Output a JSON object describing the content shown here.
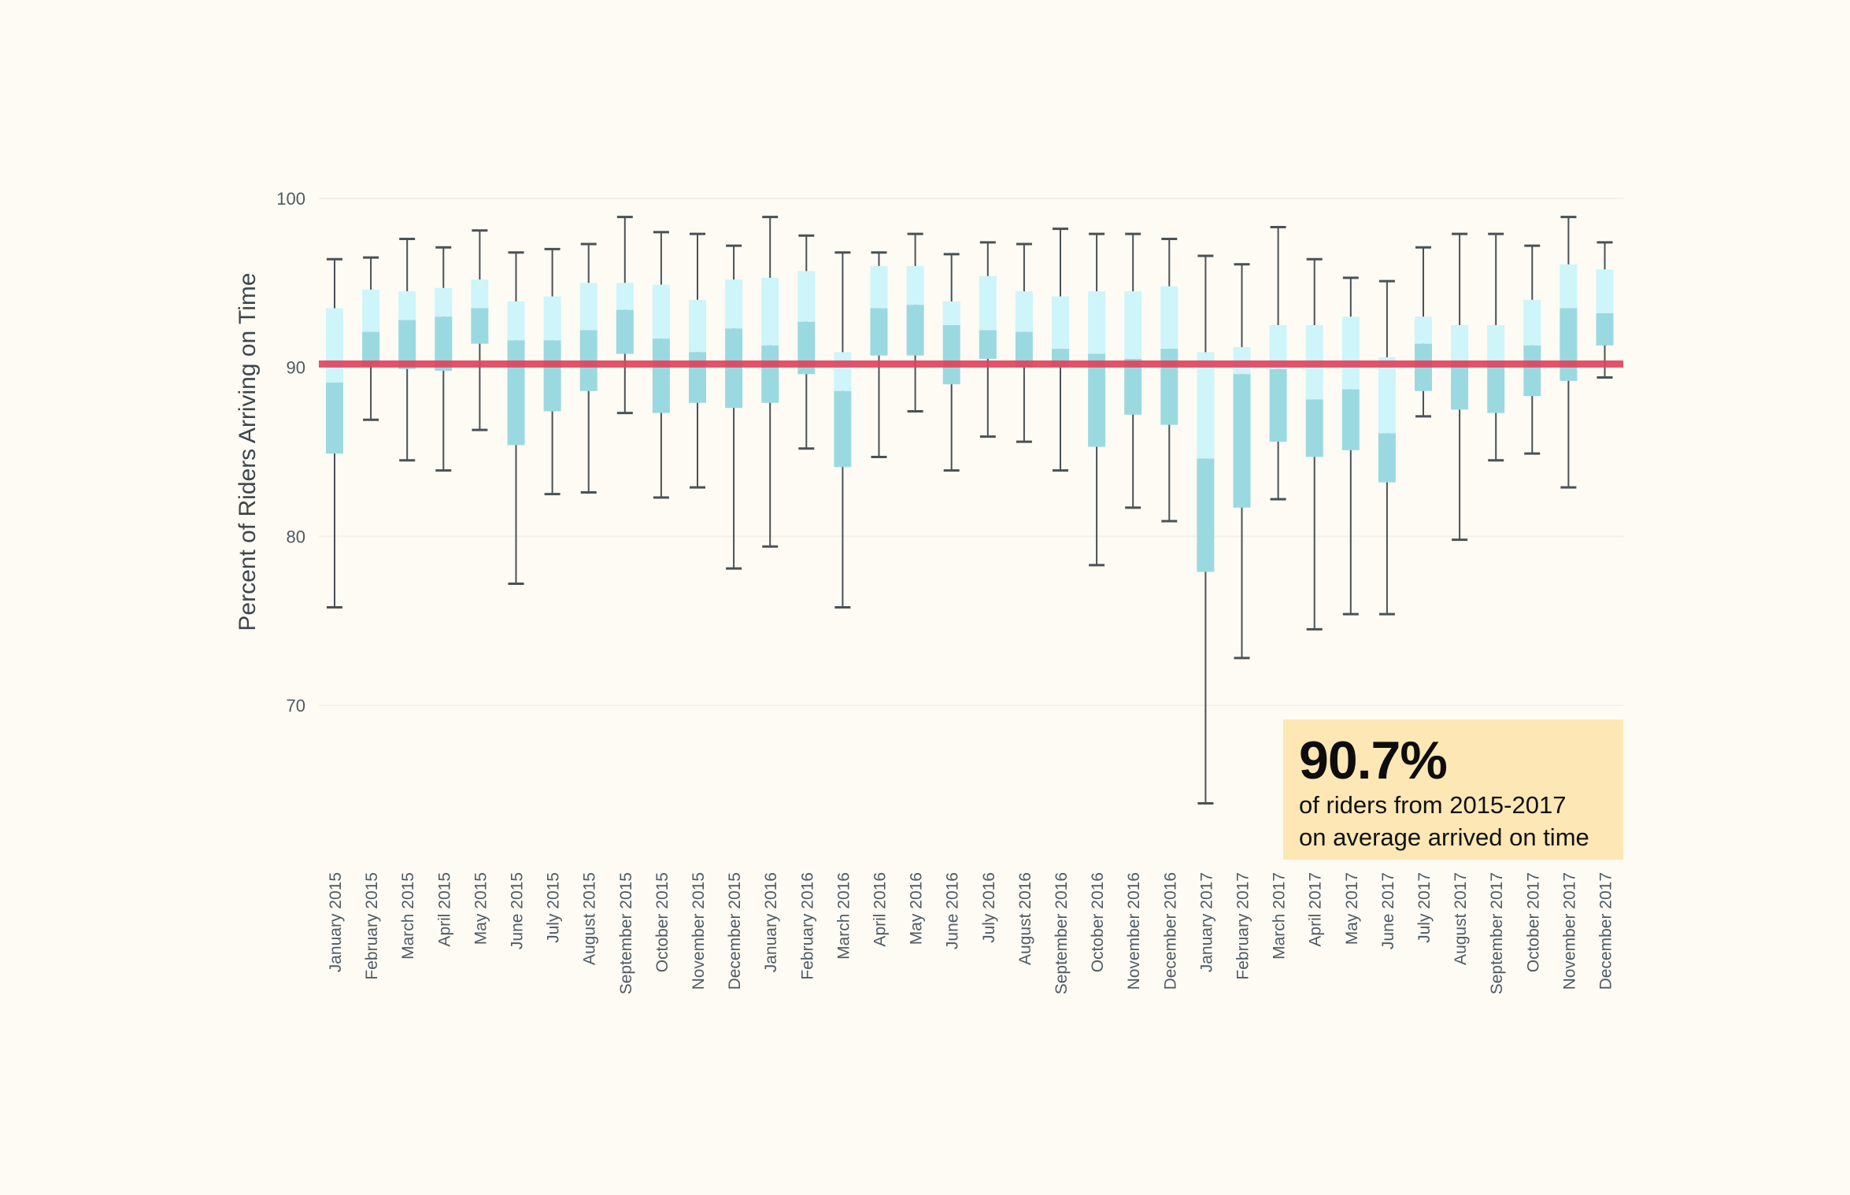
{
  "chart_data": {
    "type": "box",
    "ylabel": "Percent of Riders Arriving on Time",
    "ylim": [
      61.5,
      101
    ],
    "yticks": [
      70,
      80,
      90,
      100
    ],
    "grid": true,
    "categories": [
      "January 2015",
      "February 2015",
      "March 2015",
      "April 2015",
      "May 2015",
      "June 2015",
      "July 2015",
      "August 2015",
      "September 2015",
      "October 2015",
      "November 2015",
      "December 2015",
      "January 2016",
      "February 2016",
      "March 2016",
      "April 2016",
      "May 2016",
      "June 2016",
      "July 2016",
      "August 2016",
      "September 2016",
      "October 2016",
      "November 2016",
      "December 2016",
      "January 2017",
      "February 2017",
      "March 2017",
      "April 2017",
      "May 2017",
      "June 2017",
      "July 2017",
      "August 2017",
      "September 2017",
      "October 2017",
      "November 2017",
      "December 2017"
    ],
    "boxes": [
      {
        "min": 75.8,
        "q1": 84.9,
        "median": 89.1,
        "q3": 93.5,
        "max": 96.4
      },
      {
        "min": 86.9,
        "q1": 90.1,
        "median": 92.1,
        "q3": 94.6,
        "max": 96.5
      },
      {
        "min": 84.5,
        "q1": 89.9,
        "median": 92.8,
        "q3": 94.5,
        "max": 97.6
      },
      {
        "min": 83.9,
        "q1": 89.8,
        "median": 93.0,
        "q3": 94.7,
        "max": 97.1
      },
      {
        "min": 86.3,
        "q1": 91.4,
        "median": 93.5,
        "q3": 95.2,
        "max": 98.1
      },
      {
        "min": 77.2,
        "q1": 85.4,
        "median": 91.6,
        "q3": 93.9,
        "max": 96.8
      },
      {
        "min": 82.5,
        "q1": 87.4,
        "median": 91.6,
        "q3": 94.2,
        "max": 97.0
      },
      {
        "min": 82.6,
        "q1": 88.6,
        "median": 92.2,
        "q3": 95.0,
        "max": 97.3
      },
      {
        "min": 87.3,
        "q1": 90.8,
        "median": 93.4,
        "q3": 95.0,
        "max": 98.9
      },
      {
        "min": 82.3,
        "q1": 87.3,
        "median": 91.7,
        "q3": 94.9,
        "max": 98.0
      },
      {
        "min": 82.9,
        "q1": 87.9,
        "median": 90.9,
        "q3": 94.0,
        "max": 97.9
      },
      {
        "min": 78.1,
        "q1": 87.6,
        "median": 92.3,
        "q3": 95.2,
        "max": 97.2
      },
      {
        "min": 79.4,
        "q1": 87.9,
        "median": 91.3,
        "q3": 95.3,
        "max": 98.9
      },
      {
        "min": 85.2,
        "q1": 89.6,
        "median": 92.7,
        "q3": 95.7,
        "max": 97.8
      },
      {
        "min": 75.8,
        "q1": 84.1,
        "median": 88.6,
        "q3": 90.9,
        "max": 96.8
      },
      {
        "min": 84.7,
        "q1": 90.7,
        "median": 93.5,
        "q3": 96.0,
        "max": 96.8
      },
      {
        "min": 87.4,
        "q1": 90.7,
        "median": 93.7,
        "q3": 96.0,
        "max": 97.9
      },
      {
        "min": 83.9,
        "q1": 89.0,
        "median": 92.5,
        "q3": 93.9,
        "max": 96.7
      },
      {
        "min": 85.9,
        "q1": 90.5,
        "median": 92.2,
        "q3": 95.4,
        "max": 97.4
      },
      {
        "min": 85.6,
        "q1": 90.0,
        "median": 92.1,
        "q3": 94.5,
        "max": 97.3
      },
      {
        "min": 83.9,
        "q1": 90.0,
        "median": 91.1,
        "q3": 94.2,
        "max": 98.2
      },
      {
        "min": 78.3,
        "q1": 85.3,
        "median": 90.8,
        "q3": 94.5,
        "max": 97.9
      },
      {
        "min": 81.7,
        "q1": 87.2,
        "median": 90.5,
        "q3": 94.5,
        "max": 97.9
      },
      {
        "min": 80.9,
        "q1": 86.6,
        "median": 91.1,
        "q3": 94.8,
        "max": 97.6
      },
      {
        "min": 64.2,
        "q1": 77.9,
        "median": 84.6,
        "q3": 90.9,
        "max": 96.6
      },
      {
        "min": 72.8,
        "q1": 81.7,
        "median": 89.6,
        "q3": 91.2,
        "max": 96.1
      },
      {
        "min": 82.2,
        "q1": 85.6,
        "median": 89.9,
        "q3": 92.5,
        "max": 98.3
      },
      {
        "min": 74.5,
        "q1": 84.7,
        "median": 88.1,
        "q3": 92.5,
        "max": 96.4
      },
      {
        "min": 75.4,
        "q1": 85.1,
        "median": 88.7,
        "q3": 93.0,
        "max": 95.3
      },
      {
        "min": 75.4,
        "q1": 83.2,
        "median": 86.1,
        "q3": 90.6,
        "max": 95.1
      },
      {
        "min": 87.1,
        "q1": 88.6,
        "median": 91.4,
        "q3": 93.0,
        "max": 97.1
      },
      {
        "min": 79.8,
        "q1": 87.5,
        "median": 90.4,
        "q3": 92.5,
        "max": 97.9
      },
      {
        "min": 84.5,
        "q1": 87.3,
        "median": 90.3,
        "q3": 92.5,
        "max": 97.9
      },
      {
        "min": 84.9,
        "q1": 88.3,
        "median": 91.3,
        "q3": 94.0,
        "max": 97.2
      },
      {
        "min": 82.9,
        "q1": 89.2,
        "median": 93.5,
        "q3": 96.1,
        "max": 98.9
      },
      {
        "min": 89.4,
        "q1": 91.3,
        "median": 93.2,
        "q3": 95.8,
        "max": 97.4
      }
    ],
    "reference_line": {
      "value": 90.2,
      "color": "#e0435d"
    },
    "colors": {
      "background": "#fdfbf4",
      "upper_box": "#cef5f9",
      "lower_box": "#9bd9e0",
      "whisker": "#4a5155",
      "axis_text": "#4f5a63",
      "grid": "#f3f1e8"
    }
  },
  "callout": {
    "value": "90.7%",
    "line1": "of riders from 2015-2017",
    "line2": "on average arrived on time"
  }
}
